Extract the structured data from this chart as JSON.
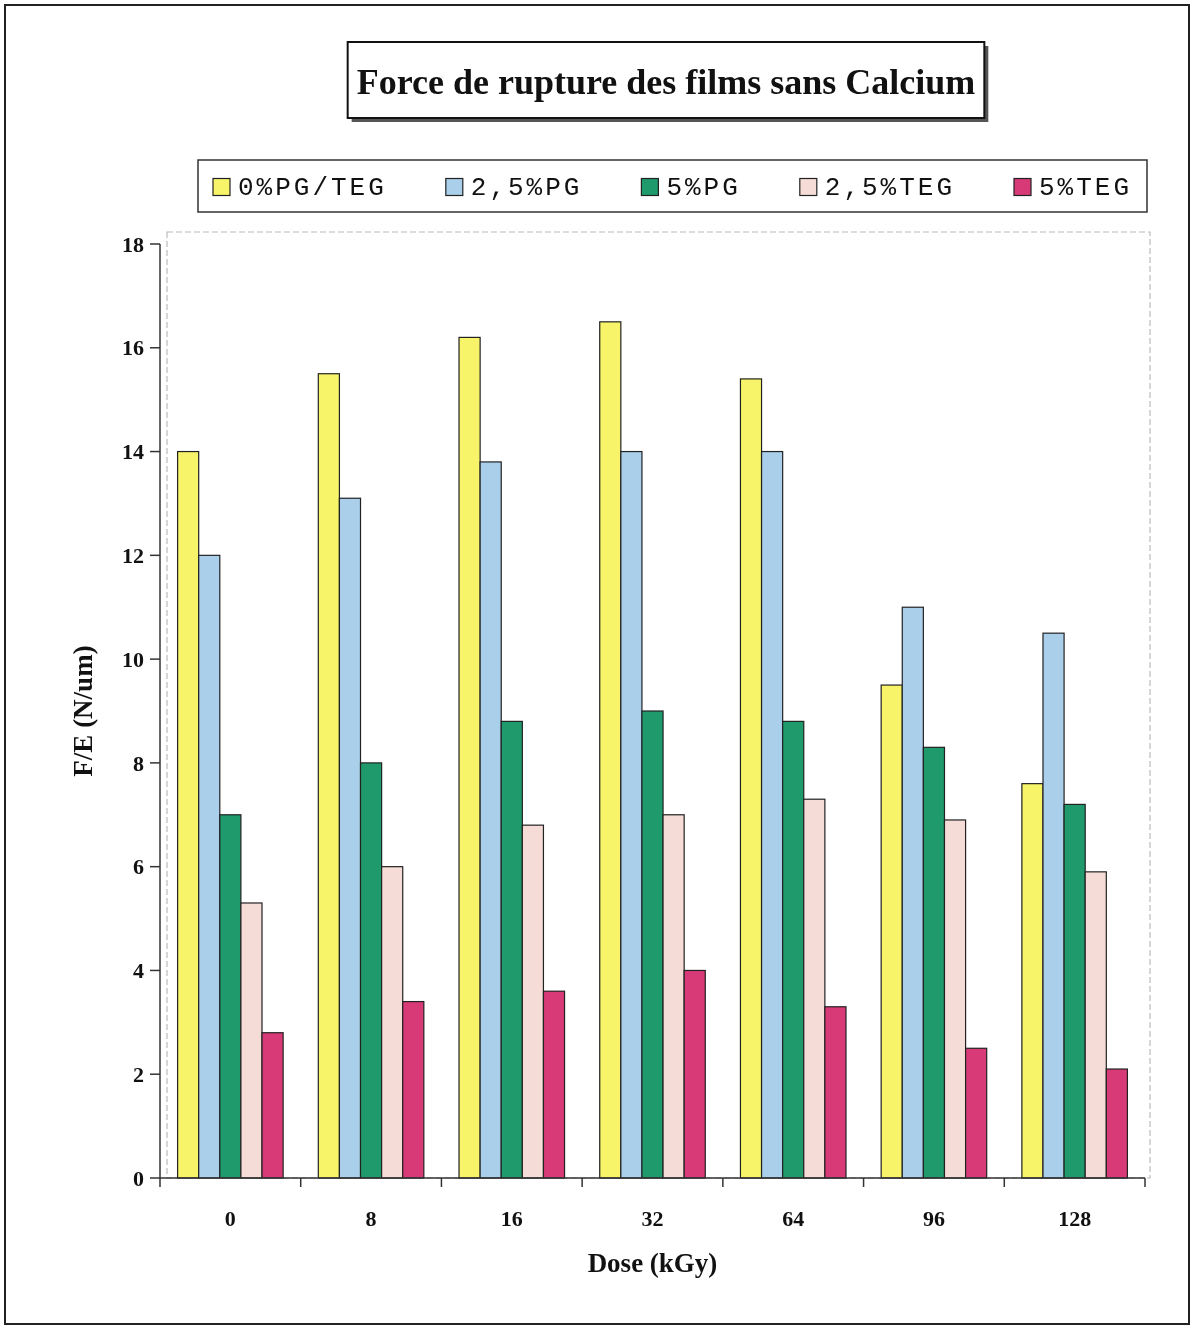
{
  "chart_data": {
    "type": "bar",
    "title": "Force de rupture des films sans Calcium",
    "xlabel": "Dose (kGy)",
    "ylabel": "F/E (N/um)",
    "categories": [
      "0",
      "8",
      "16",
      "32",
      "64",
      "96",
      "128"
    ],
    "series": [
      {
        "name": "0%PG/TEG",
        "color": "#f7f46a",
        "values": [
          14.0,
          15.5,
          16.2,
          16.5,
          15.4,
          9.5,
          7.6
        ]
      },
      {
        "name": "2,5%PG",
        "color": "#a9cfea",
        "values": [
          12.0,
          13.1,
          13.8,
          14.0,
          14.0,
          11.0,
          10.5
        ]
      },
      {
        "name": "5%PG",
        "color": "#1e9a6c",
        "values": [
          7.0,
          8.0,
          8.8,
          9.0,
          8.8,
          8.3,
          7.2
        ]
      },
      {
        "name": "2,5%TEG",
        "color": "#f6dcd6",
        "values": [
          5.3,
          6.0,
          6.8,
          7.0,
          7.3,
          6.9,
          5.9
        ]
      },
      {
        "name": "5%TEG",
        "color": "#d83a78",
        "values": [
          2.8,
          3.4,
          3.6,
          4.0,
          3.3,
          2.5,
          2.1
        ]
      }
    ],
    "ylim": [
      0,
      18
    ],
    "yticks": [
      0,
      2,
      4,
      6,
      8,
      10,
      12,
      14,
      16,
      18
    ],
    "legend": "top"
  }
}
